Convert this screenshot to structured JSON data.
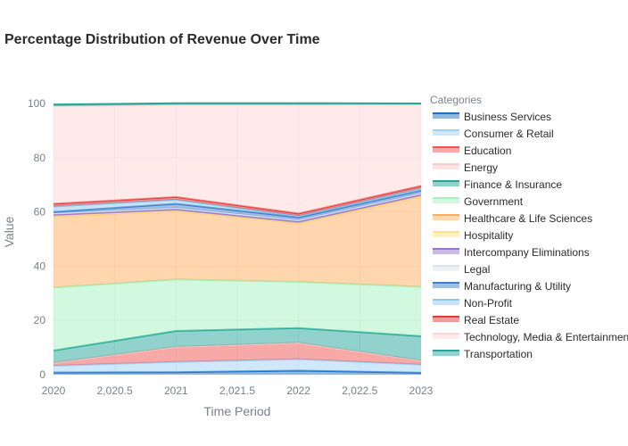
{
  "chart_data": {
    "type": "area",
    "stacked": true,
    "title": "Percentage Distribution of Revenue Over Time",
    "xlabel": "Time Period",
    "ylabel": "Value",
    "x": [
      2020,
      2021,
      2022,
      2023
    ],
    "x_ticks": [
      2020,
      2020.5,
      2021,
      2021.5,
      2022,
      2022.5,
      2023
    ],
    "x_tick_labels": [
      "2020",
      "2,020.5",
      "2021",
      "2,021.5",
      "2022",
      "2,022.5",
      "2023"
    ],
    "y_ticks": [
      0,
      20,
      40,
      60,
      80,
      100
    ],
    "ylim": [
      0,
      100
    ],
    "grid": true,
    "legend_title": "Categories",
    "legend_position": "right",
    "series": [
      {
        "name": "Business Services",
        "color": "#1f6fc2",
        "values": [
          0.8,
          0.9,
          1.5,
          0.7
        ]
      },
      {
        "name": "Consumer & Retail",
        "color": "#9fd1f5",
        "values": [
          2.5,
          3.8,
          4.2,
          3.0
        ]
      },
      {
        "name": "Education",
        "color": "#ef5350",
        "values": [
          1.0,
          5.5,
          6.0,
          1.5
        ]
      },
      {
        "name": "Energy",
        "color": "#ffc9c9",
        "values": [
          0.0,
          0.0,
          0.0,
          0.0
        ]
      },
      {
        "name": "Finance & Insurance",
        "color": "#26a69a",
        "values": [
          4.6,
          5.9,
          5.5,
          9.0
        ]
      },
      {
        "name": "Government",
        "color": "#a5f2bf",
        "values": [
          23.2,
          19.0,
          17.0,
          18.2
        ]
      },
      {
        "name": "Healthcare & Life Sciences",
        "color": "#ffad5c",
        "values": [
          26.3,
          25.3,
          21.6,
          33.3
        ]
      },
      {
        "name": "Hospitality",
        "color": "#ffe08a",
        "values": [
          0.1,
          0.1,
          0.1,
          0.1
        ]
      },
      {
        "name": "Intercompany Eliminations",
        "color": "#9575cd",
        "values": [
          0.5,
          0.5,
          0.6,
          0.6
        ]
      },
      {
        "name": "Legal",
        "color": "#dde3ee",
        "values": [
          0.5,
          0.5,
          0.5,
          0.5
        ]
      },
      {
        "name": "Manufacturing & Utility",
        "color": "#3f7fc9",
        "values": [
          0.5,
          1.5,
          1.0,
          1.0
        ]
      },
      {
        "name": "Non-Profit",
        "color": "#90c8f0",
        "values": [
          2.0,
          1.5,
          0.5,
          0.8
        ]
      },
      {
        "name": "Real Estate",
        "color": "#e53935",
        "values": [
          1.0,
          1.0,
          0.9,
          0.9
        ]
      },
      {
        "name": "Technology, Media & Entertainment",
        "color": "#ffd6d6",
        "values": [
          36.0,
          34.0,
          40.1,
          30.0
        ]
      },
      {
        "name": "Transportation",
        "color": "#26a69a",
        "values": [
          0.6,
          0.6,
          0.6,
          0.4
        ]
      }
    ]
  }
}
